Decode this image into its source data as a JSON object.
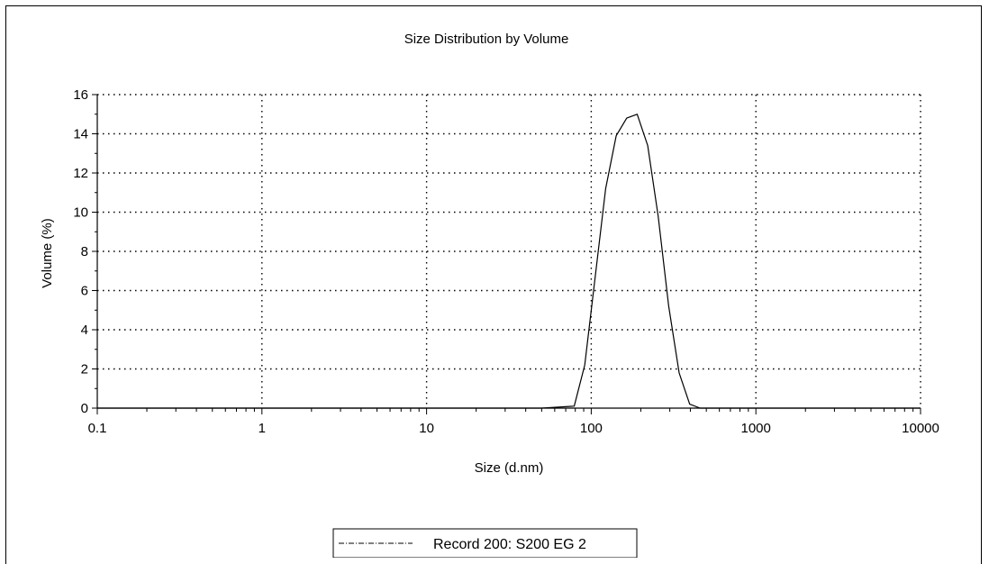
{
  "chart_data": {
    "type": "line",
    "title": "Size Distribution by Volume",
    "xlabel": "Size (d.nm)",
    "ylabel": "Volume (%)",
    "x_scale": "log",
    "xlim": [
      0.1,
      10000
    ],
    "ylim": [
      0,
      16
    ],
    "x_ticks": [
      "0.1",
      "1",
      "10",
      "100",
      "1000",
      "10000"
    ],
    "y_ticks": [
      "0",
      "2",
      "4",
      "6",
      "8",
      "10",
      "12",
      "14",
      "16"
    ],
    "grid": true,
    "legend_position": "bottom",
    "series": [
      {
        "name": "Record 200: S200 EG 2",
        "x": [
          0.1,
          50,
          78.8,
          91.3,
          105.7,
          122.4,
          141.8,
          164.2,
          190.1,
          220.2,
          255.0,
          295.3,
          342.0,
          396.1,
          458.7,
          1000,
          10000
        ],
        "y": [
          0,
          0,
          0.1,
          2.2,
          6.7,
          11.2,
          13.9,
          14.8,
          15.0,
          13.4,
          9.8,
          5.2,
          1.8,
          0.2,
          0,
          0,
          0
        ]
      }
    ]
  }
}
